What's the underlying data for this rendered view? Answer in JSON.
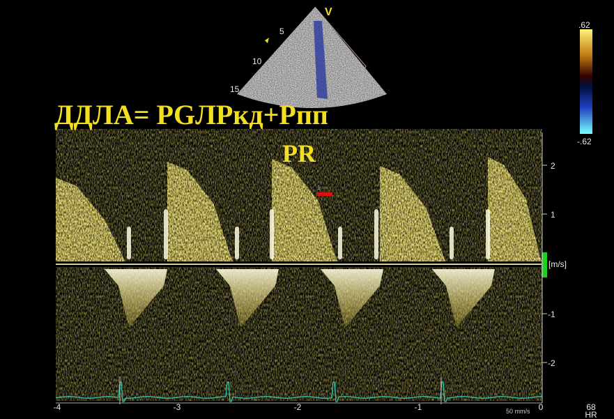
{
  "sector": {
    "mode_label": "V",
    "depth_labels": [
      "5",
      "10",
      "15"
    ]
  },
  "annotations": {
    "formula": "ДДЛА= PGЛРкд+Рпп",
    "label": "PR"
  },
  "marker_label": "1",
  "velocity_scale": {
    "ticks": [
      "2",
      "1",
      "-1",
      "-2"
    ],
    "unit": "[m/s]"
  },
  "time_axis": {
    "ticks": [
      "-4",
      "-3",
      "-2",
      "-1",
      "0"
    ]
  },
  "sweep_speed": "50 mm/s",
  "color_scale": {
    "max": ".62",
    "min": "-.62"
  },
  "heart_rate": {
    "value": "68",
    "label": "HR"
  }
}
